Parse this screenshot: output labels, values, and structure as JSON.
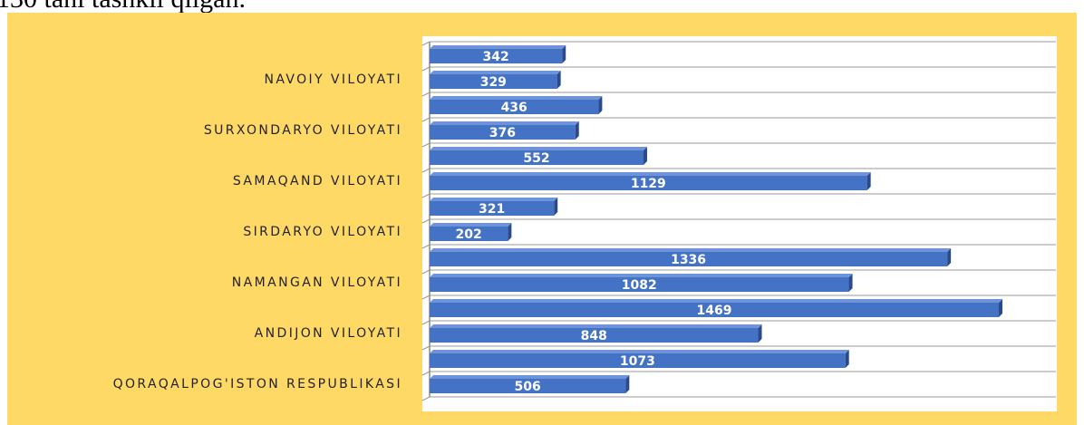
{
  "caption": "130 tani tashkil qilgan.",
  "chart_data": {
    "type": "barh",
    "categories": [
      null,
      "NAVOIY VILOYATI",
      null,
      "SURXONDARYO VILOYATI",
      null,
      "SAMAQAND VILOYATI",
      null,
      "SIRDARYO VILOYATI",
      null,
      "NAMANGAN VILOYATI",
      null,
      "ANDIJON VILOYATI",
      null,
      "QORAQALPOG'ISTON RESPUBLIKASI"
    ],
    "values": [
      342,
      329,
      436,
      376,
      552,
      1129,
      321,
      202,
      1336,
      1082,
      1469,
      848,
      1073,
      506
    ],
    "color": "#4472c4",
    "xlim": [
      0,
      1600
    ],
    "grid": true
  }
}
